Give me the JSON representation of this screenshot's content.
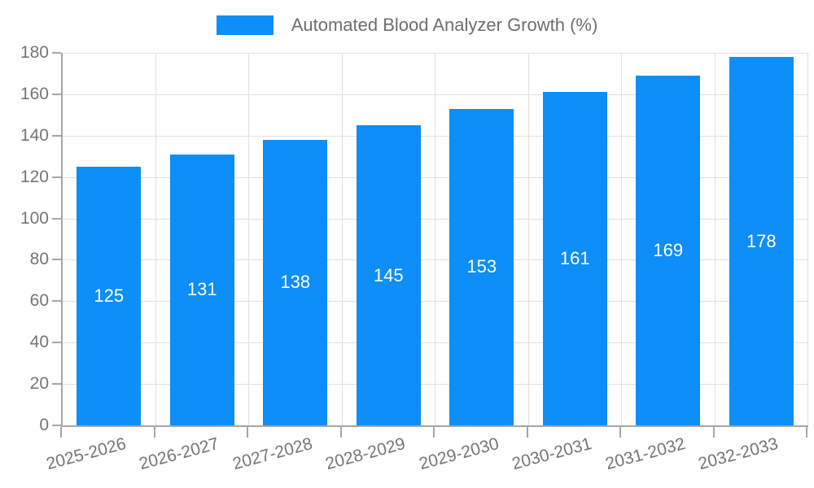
{
  "chart_data": {
    "type": "bar",
    "title": "Automated Blood Analyzer Growth (%)",
    "categories": [
      "2025-2026",
      "2026-2027",
      "2027-2028",
      "2028-2029",
      "2029-2030",
      "2030-2031",
      "2031-2032",
      "2032-2033"
    ],
    "values": [
      125,
      131,
      138,
      145,
      153,
      161,
      169,
      178
    ],
    "y_ticks": [
      0,
      20,
      40,
      60,
      80,
      100,
      120,
      140,
      160,
      180
    ],
    "ylim": [
      0,
      180
    ],
    "xlabel": "",
    "ylabel": "",
    "grid": true,
    "legend_position": "top",
    "value_labels": "centered-inside-bars-white",
    "colors": {
      "bar": "#0d8ef8",
      "value_label": "#ffffff",
      "axis_line": "#a6a6a6",
      "grid_line": "#e0e0e0",
      "tick_text": "#757575",
      "legend_text": "#6e6e6e",
      "background": "#ffffff"
    }
  }
}
